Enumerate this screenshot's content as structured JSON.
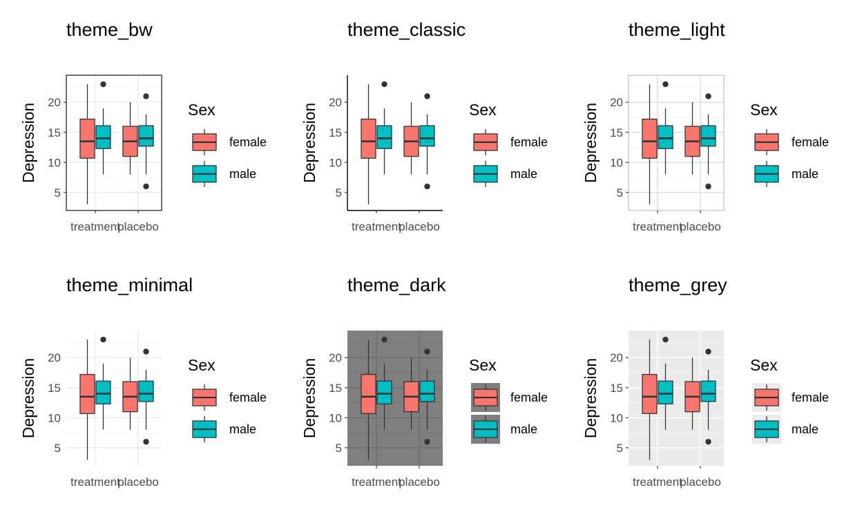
{
  "chart_data": {
    "type": "box",
    "ylabel": "Depression",
    "categories": [
      "treatment",
      "placebo"
    ],
    "ylim": [
      2,
      24.5
    ],
    "yticks": [
      5,
      10,
      15,
      20
    ],
    "legend": {
      "title": "Sex",
      "placement": "right",
      "entries": [
        "female",
        "male"
      ]
    },
    "series": [
      {
        "name": "female",
        "color": "#F8766D",
        "boxes": [
          {
            "category": "treatment",
            "min": 3,
            "q1": 10.7,
            "median": 13.5,
            "q3": 17.2,
            "max": 23,
            "outliers": []
          },
          {
            "category": "placebo",
            "min": 8,
            "q1": 11,
            "median": 13.5,
            "q3": 16,
            "max": 20,
            "outliers": []
          }
        ]
      },
      {
        "name": "male",
        "color": "#00BFC4",
        "boxes": [
          {
            "category": "treatment",
            "min": 8,
            "q1": 12.3,
            "median": 14,
            "q3": 16.1,
            "max": 19,
            "outliers": [
              23
            ]
          },
          {
            "category": "placebo",
            "min": 8,
            "q1": 12.7,
            "median": 14,
            "q3": 16.1,
            "max": 18,
            "outliers": [
              21,
              6
            ]
          }
        ]
      }
    ],
    "panels": [
      {
        "title": "theme_bw",
        "theme": "bw"
      },
      {
        "title": "theme_classic",
        "theme": "classic"
      },
      {
        "title": "theme_light",
        "theme": "light"
      },
      {
        "title": "theme_minimal",
        "theme": "minimal"
      },
      {
        "title": "theme_dark",
        "theme": "dark"
      },
      {
        "title": "theme_grey",
        "theme": "grey"
      }
    ]
  }
}
